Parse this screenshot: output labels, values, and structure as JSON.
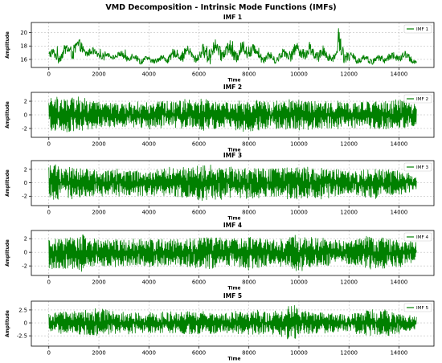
{
  "title": "VMD Decomposition - Intrinsic Mode Functions (IMFs)",
  "colors": {
    "series": "#008000",
    "grid": "#b0b0b0",
    "axis": "#000000"
  },
  "chart_data": [
    {
      "type": "line",
      "title": "IMF 1",
      "xlabel": "Time",
      "ylabel": "Amplitude",
      "legend": "IMF 1",
      "legend_position": "top-right",
      "grid": true,
      "xlim": [
        -700,
        15400
      ],
      "ylim": [
        14.8,
        21.5
      ],
      "xticks": [
        0,
        2000,
        4000,
        6000,
        8000,
        10000,
        12000,
        14000
      ],
      "yticks": [
        16,
        18,
        20
      ],
      "n_points": 14700,
      "envelope": {
        "x": [
          0,
          500,
          1000,
          1100,
          1500,
          2000,
          2500,
          3000,
          3500,
          4000,
          4500,
          5000,
          5500,
          6000,
          6300,
          6500,
          7000,
          7500,
          8000,
          8500,
          9000,
          9500,
          10000,
          10500,
          11000,
          11500,
          11600,
          12000,
          12500,
          13000,
          13500,
          14000,
          14500,
          14700
        ],
        "upper": [
          17.8,
          18.0,
          19.5,
          19.6,
          18.2,
          17.6,
          17.0,
          17.5,
          17.0,
          16.5,
          16.8,
          17.6,
          18.3,
          17.2,
          19.8,
          19.2,
          19.1,
          18.5,
          19.5,
          17.8,
          17.0,
          18.2,
          19.0,
          18.5,
          18.0,
          17.5,
          21.2,
          17.2,
          17.0,
          16.6,
          17.2,
          17.4,
          17.3,
          16.0
        ],
        "lower": [
          15.3,
          15.5,
          15.8,
          16.0,
          16.2,
          15.8,
          16.0,
          15.6,
          15.3,
          15.3,
          15.2,
          15.4,
          15.8,
          15.2,
          15.0,
          15.4,
          15.5,
          15.2,
          15.8,
          15.3,
          15.2,
          15.5,
          15.6,
          15.5,
          15.3,
          15.3,
          15.5,
          15.1,
          15.2,
          15.1,
          15.3,
          15.4,
          15.3,
          15.0
        ]
      }
    },
    {
      "type": "line",
      "title": "IMF 2",
      "xlabel": "Time",
      "ylabel": "Amplitude",
      "legend": "IMF 2",
      "legend_position": "top-right",
      "grid": true,
      "xlim": [
        -700,
        15400
      ],
      "ylim": [
        -3.3,
        3.3
      ],
      "xticks": [
        0,
        2000,
        4000,
        6000,
        8000,
        10000,
        12000,
        14000
      ],
      "yticks": [
        -2,
        0,
        2
      ],
      "n_points": 14700,
      "envelope": {
        "x": [
          0,
          100,
          1000,
          1200,
          2000,
          3000,
          4000,
          5000,
          6000,
          6200,
          7000,
          8000,
          9000,
          10000,
          11000,
          12000,
          13000,
          14000,
          14700
        ],
        "upper": [
          2.2,
          3.0,
          2.6,
          2.8,
          2.0,
          1.8,
          2.0,
          2.2,
          2.4,
          2.6,
          1.8,
          2.2,
          2.0,
          2.4,
          2.2,
          1.9,
          2.1,
          2.4,
          1.8
        ],
        "lower": [
          -2.2,
          -2.6,
          -2.8,
          -2.6,
          -2.0,
          -1.8,
          -2.1,
          -2.0,
          -2.4,
          -2.5,
          -1.9,
          -2.6,
          -2.0,
          -2.5,
          -2.1,
          -2.0,
          -2.2,
          -2.3,
          -1.6
        ]
      }
    },
    {
      "type": "line",
      "title": "IMF 3",
      "xlabel": "Time",
      "ylabel": "Amplitude",
      "legend": "IMF 3",
      "legend_position": "top-right",
      "grid": true,
      "xlim": [
        -700,
        15400
      ],
      "ylim": [
        -3.4,
        3.3
      ],
      "xticks": [
        0,
        2000,
        4000,
        6000,
        8000,
        10000,
        12000,
        14000
      ],
      "yticks": [
        -2,
        0,
        2
      ],
      "n_points": 14700,
      "envelope": {
        "x": [
          0,
          1000,
          2000,
          3000,
          4000,
          5000,
          6000,
          6300,
          7000,
          8000,
          9000,
          10000,
          11000,
          12000,
          13000,
          14000,
          14700
        ],
        "upper": [
          2.8,
          2.4,
          2.2,
          2.0,
          2.0,
          2.4,
          2.5,
          2.9,
          2.6,
          2.3,
          2.2,
          2.6,
          2.4,
          1.8,
          2.2,
          2.0,
          1.0
        ],
        "lower": [
          -2.5,
          -2.4,
          -2.0,
          -2.0,
          -2.1,
          -2.2,
          -2.7,
          -3.0,
          -2.4,
          -2.5,
          -2.2,
          -2.6,
          -2.4,
          -1.7,
          -2.4,
          -2.0,
          -1.0
        ]
      }
    },
    {
      "type": "line",
      "title": "IMF 4",
      "xlabel": "Time",
      "ylabel": "Amplitude",
      "legend": "IMF 4",
      "legend_position": "top-right",
      "grid": true,
      "xlim": [
        -700,
        15400
      ],
      "ylim": [
        -3.4,
        3.2
      ],
      "xticks": [
        0,
        2000,
        4000,
        6000,
        8000,
        10000,
        12000,
        14000
      ],
      "yticks": [
        -2,
        0,
        2
      ],
      "n_points": 14700,
      "envelope": {
        "x": [
          0,
          1000,
          1300,
          2000,
          3000,
          4000,
          5000,
          6000,
          6300,
          7000,
          8000,
          9000,
          10000,
          11000,
          12000,
          13000,
          14000,
          14700
        ],
        "upper": [
          2.2,
          2.4,
          2.8,
          2.0,
          2.0,
          2.2,
          2.0,
          2.4,
          2.6,
          2.2,
          2.4,
          2.0,
          2.6,
          2.2,
          1.8,
          2.6,
          2.0,
          1.6
        ],
        "lower": [
          -2.4,
          -2.6,
          -3.0,
          -2.0,
          -2.2,
          -2.3,
          -2.0,
          -2.5,
          -2.8,
          -2.0,
          -2.6,
          -2.0,
          -2.8,
          -2.1,
          -1.8,
          -2.8,
          -2.2,
          -1.6
        ]
      }
    },
    {
      "type": "line",
      "title": "IMF 5",
      "xlabel": "Time",
      "ylabel": "Amplitude",
      "legend": "IMF 5",
      "legend_position": "top-right",
      "grid": true,
      "xlim": [
        -700,
        15400
      ],
      "ylim": [
        -4.5,
        4.2
      ],
      "xticks": [
        0,
        2000,
        4000,
        6000,
        8000,
        10000,
        12000,
        14000
      ],
      "yticks": [
        -2.5,
        0.0,
        2.5
      ],
      "n_points": 14700,
      "envelope": {
        "x": [
          0,
          1000,
          2000,
          3000,
          4000,
          5000,
          6000,
          7000,
          8000,
          9000,
          9800,
          10000,
          11000,
          12000,
          13000,
          14000,
          14700
        ],
        "upper": [
          2.0,
          2.4,
          3.0,
          2.2,
          2.0,
          2.2,
          2.4,
          2.0,
          2.6,
          2.2,
          3.8,
          2.4,
          2.0,
          1.8,
          2.8,
          2.2,
          1.2
        ],
        "lower": [
          -2.0,
          -2.4,
          -2.6,
          -2.2,
          -2.0,
          -2.2,
          -2.4,
          -2.0,
          -2.4,
          -2.2,
          -3.8,
          -2.4,
          -2.0,
          -1.8,
          -2.8,
          -2.2,
          -1.2
        ]
      }
    }
  ]
}
